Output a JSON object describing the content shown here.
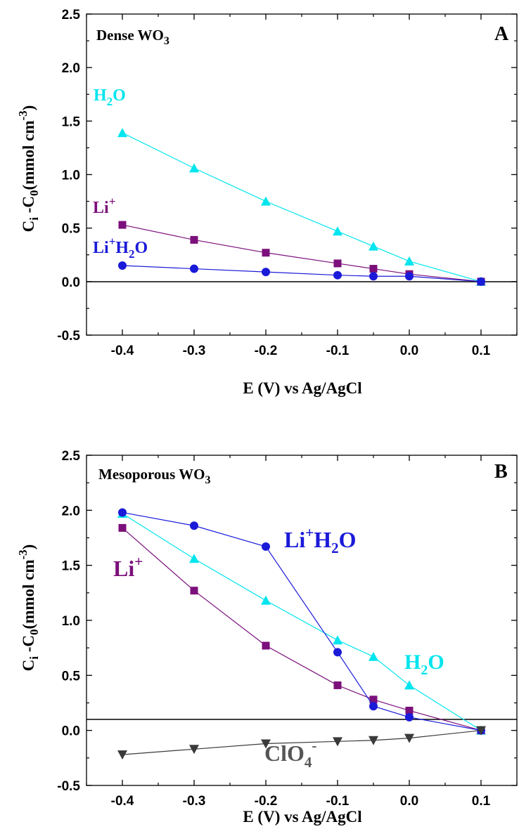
{
  "colors": {
    "H2O": "#00e5ee",
    "Li": "#7b0f7b",
    "LiH2O": "#1a1ad9",
    "ClO4": "#3a3a3a",
    "axis": "#000000"
  },
  "chart_data": [
    {
      "type": "line",
      "panel_letter": "A",
      "film": {
        "main": "Dense WO",
        "sub": "3"
      },
      "xlabel": "E (V) vs Ag/AgCl",
      "ylabel": {
        "p1": "C",
        "s1": "i",
        "p2": " -C",
        "s2": "0",
        "p3": "(mmol cm",
        "s3": "-3",
        "p4": ")"
      },
      "xlim": [
        -0.45,
        0.15
      ],
      "ylim": [
        -0.5,
        2.5
      ],
      "xticks": [
        "-0.4",
        "-0.3",
        "-0.2",
        "-0.1",
        "0.0",
        "0.1"
      ],
      "yticks": [
        "-0.5",
        "0.0",
        "0.5",
        "1.0",
        "1.5",
        "2.0",
        "2.5"
      ],
      "x": [
        -0.4,
        -0.3,
        -0.2,
        -0.1,
        -0.05,
        0.0,
        0.1
      ],
      "series": [
        {
          "key": "H2O",
          "marker": "triangle-up",
          "values": [
            1.39,
            1.06,
            0.75,
            0.47,
            0.33,
            0.19,
            0.0
          ],
          "label": {
            "p1": "H",
            "s1": "2",
            "p2": "O"
          }
        },
        {
          "key": "Li",
          "marker": "square",
          "values": [
            0.53,
            0.39,
            0.27,
            0.17,
            0.12,
            0.07,
            0.0
          ],
          "label": {
            "p1": "Li",
            "sup1": "+"
          }
        },
        {
          "key": "LiH2O",
          "marker": "circle",
          "values": [
            0.15,
            0.12,
            0.09,
            0.06,
            0.05,
            0.05,
            0.0
          ],
          "label": {
            "p1": "Li",
            "sup1": "+",
            "p2": "H",
            "s2": "2",
            "p3": "O"
          }
        }
      ]
    },
    {
      "type": "line",
      "panel_letter": "B",
      "film": {
        "main": "Mesoporous WO",
        "sub": "3"
      },
      "xlabel": "E (V) vs Ag/AgCl",
      "ylabel": {
        "p1": "C",
        "s1": "i",
        "p2": " -C",
        "s2": "0",
        "p3": "(mmol cm",
        "s3": "-3",
        "p4": ")"
      },
      "xlim": [
        -0.45,
        0.15
      ],
      "ylim": [
        -0.5,
        2.5
      ],
      "xticks": [
        "-0.4",
        "-0.3",
        "-0.2",
        "-0.1",
        "0.0",
        "0.1"
      ],
      "yticks": [
        "-0.5",
        "0.0",
        "0.5",
        "1.0",
        "1.5",
        "2.0",
        "2.5"
      ],
      "x": [
        -0.4,
        -0.3,
        -0.2,
        -0.1,
        -0.05,
        0.0,
        0.1
      ],
      "series": [
        {
          "key": "H2O",
          "marker": "triangle-up",
          "values": [
            1.97,
            1.56,
            1.18,
            0.82,
            0.67,
            0.41,
            0.0
          ],
          "label": {
            "p1": "H",
            "s1": "2",
            "p2": "O"
          }
        },
        {
          "key": "Li",
          "marker": "square",
          "values": [
            1.84,
            1.27,
            0.77,
            0.41,
            0.28,
            0.18,
            0.0
          ],
          "label": {
            "p1": "Li",
            "sup1": "+"
          }
        },
        {
          "key": "LiH2O",
          "marker": "circle",
          "values": [
            1.98,
            1.86,
            1.67,
            0.71,
            0.22,
            0.12,
            0.0
          ],
          "label": {
            "p1": "Li",
            "sup1": "+",
            "p2": "H",
            "s2": "2",
            "p3": "O"
          }
        },
        {
          "key": "ClO4",
          "marker": "triangle-down",
          "values": [
            -0.22,
            -0.17,
            -0.12,
            -0.1,
            -0.09,
            -0.07,
            0.0
          ],
          "label": {
            "p1": "ClO",
            "s1": "4",
            "sup2": "-"
          }
        }
      ]
    }
  ]
}
